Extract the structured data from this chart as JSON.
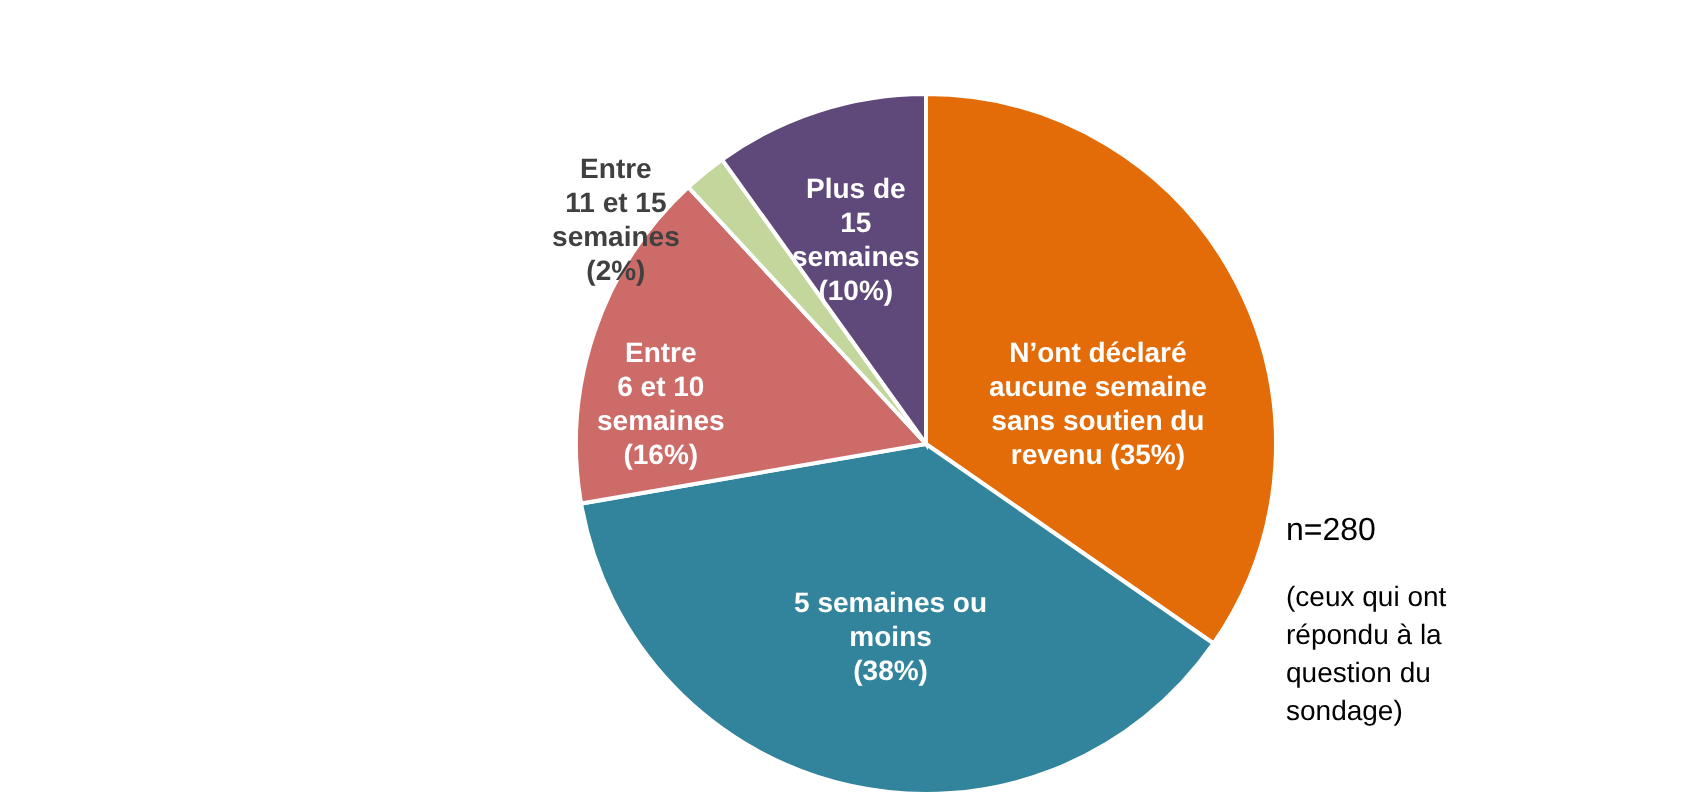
{
  "chart_data": {
    "type": "pie",
    "categories": [
      "N’ont déclaré aucune semaine sans soutien du revenu",
      "5 semaines ou moins",
      "Entre 6 et 10 semaines",
      "Entre 11 et 15 semaines",
      "Plus de 15 semaines"
    ],
    "values": [
      35,
      38,
      16,
      2,
      10
    ],
    "value_labels": [
      "(35%)",
      "(38%)",
      "(16%)",
      "(2%)",
      "(10%)"
    ],
    "colors": [
      "#e36c09",
      "#31849b",
      "#cd6b68",
      "#c3d69b",
      "#5f497a"
    ],
    "annotations": [
      "n=280",
      "(ceux qui ont répondu à la question du sondage)"
    ]
  }
}
